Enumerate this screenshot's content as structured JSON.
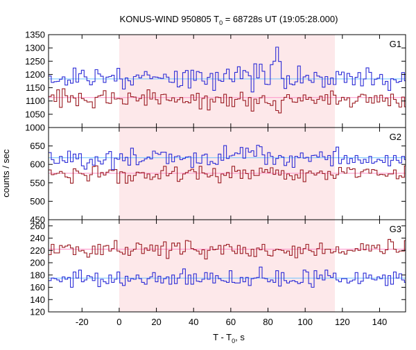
{
  "chart_data": {
    "type": "line",
    "title": "KONUS-WIND 950805 T0 = 68728s UT (19:05:28.000)",
    "title_parts": {
      "prefix": "KONUS-WIND 950805 T",
      "subscript": "0",
      "suffix": " = 68728s UT (19:05:28.000)"
    },
    "xlabel": "T - T0, s",
    "xlabel_parts": {
      "prefix": "T - T",
      "subscript": "0",
      "suffix": ", s"
    },
    "ylabel": "counts / sec",
    "xlim": [
      -38,
      154
    ],
    "xticks": [
      -20,
      0,
      20,
      40,
      60,
      80,
      100,
      120,
      140
    ],
    "highlight_interval": {
      "start": 0,
      "end": 116,
      "color": "#fde8ea"
    },
    "colors": {
      "series_blue": "#2b2bd6",
      "series_red": "#9b1b22",
      "bg_blue": "#6ec3ff",
      "bg_red": "#ff8fc8"
    },
    "step_s": 1.472,
    "panels": [
      {
        "label": "G1",
        "ylim": [
          1000,
          1350
        ],
        "yticks": [
          1000,
          1050,
          1100,
          1150,
          1200,
          1250,
          1300,
          1350
        ],
        "blue_background": 1183,
        "red_background": 1113,
        "blue_values": [
          1194,
          1170,
          1173,
          1174,
          1182,
          1191,
          1160,
          1179,
          1167,
          1224,
          1171,
          1203,
          1216,
          1191,
          1176,
          1161,
          1173,
          1218,
          1202,
          1193,
          1170,
          1190,
          1192,
          1197,
          1175,
          1223,
          1183,
          1145,
          1187,
          1176,
          1160,
          1192,
          1198,
          1187,
          1196,
          1211,
          1198,
          1184,
          1191,
          1190,
          1187,
          1185,
          1201,
          1190,
          1171,
          1170,
          1212,
          1153,
          1158,
          1207,
          1215,
          1149,
          1216,
          1178,
          1211,
          1207,
          1175,
          1163,
          1189,
          1204,
          1140,
          1208,
          1178,
          1174,
          1203,
          1220,
          1183,
          1173,
          1208,
          1229,
          1184,
          1215,
          1209,
          1195,
          1134,
          1240,
          1187,
          1239,
          1212,
          1163,
          1162,
          1237,
          1250,
          1303,
          1249,
          1185,
          1147,
          1195,
          1164,
          1161,
          1172,
          1232,
          1168,
          1191,
          1197,
          1178,
          1170,
          1208,
          1194,
          1190,
          1152,
          1192,
          1163,
          1187,
          1162,
          1211,
          1199,
          1209,
          1170,
          1204,
          1192,
          1161,
          1189,
          1207,
          1157,
          1183,
          1225,
          1208,
          1161,
          1182,
          1186,
          1200,
          1162,
          1174,
          1140,
          1184,
          1180,
          1170,
          1174,
          1207,
          1176,
          1179
        ],
        "red_values": [
          1117,
          1123,
          1098,
          1142,
          1076,
          1146,
          1120,
          1096,
          1120,
          1111,
          1082,
          1129,
          1109,
          1102,
          1096,
          1097,
          1074,
          1114,
          1119,
          1122,
          1139,
          1093,
          1091,
          1131,
          1107,
          1109,
          1108,
          1089,
          1088,
          1130,
          1116,
          1115,
          1100,
          1109,
          1123,
          1084,
          1142,
          1107,
          1131,
          1105,
          1089,
          1124,
          1125,
          1104,
          1101,
          1112,
          1096,
          1105,
          1113,
          1094,
          1098,
          1093,
          1123,
          1103,
          1129,
          1070,
          1110,
          1119,
          1066,
          1107,
          1096,
          1115,
          1113,
          1093,
          1125,
          1081,
          1114,
          1079,
          1106,
          1108,
          1133,
          1102,
          1081,
          1113,
          1062,
          1107,
          1090,
          1112,
          1120,
          1094,
          1090,
          1083,
          1101,
          1064,
          1055,
          1103,
          1114,
          1124,
          1109,
          1096,
          1095,
          1112,
          1100,
          1123,
          1106,
          1114,
          1103,
          1091,
          1106,
          1118,
          1102,
          1124,
          1088,
          1138,
          1122,
          1088,
          1100,
          1114,
          1104,
          1112,
          1077,
          1092,
          1099,
          1117,
          1125,
          1123,
          1095,
          1113,
          1092,
          1120,
          1096,
          1122,
          1099,
          1111,
          1082,
          1126,
          1106,
          1092,
          1077,
          1115,
          1078,
          1123
        ]
      },
      {
        "label": "G2",
        "ylim": [
          450,
          700
        ],
        "yticks": [
          450,
          500,
          550,
          600,
          650
        ],
        "blue_background": 618,
        "red_background": 576,
        "blue_values": [
          632,
          613,
          603,
          603,
          622,
          610,
          605,
          636,
          607,
          628,
          615,
          629,
          596,
          587,
          604,
          614,
          598,
          621,
          609,
          601,
          612,
          629,
          635,
          586,
          617,
          614,
          629,
          610,
          619,
          598,
          644,
          626,
          599,
          607,
          610,
          615,
          620,
          615,
          636,
          630,
          627,
          633,
          633,
          602,
          628,
          607,
          621,
          623,
          613,
          616,
          620,
          621,
          592,
          631,
          604,
          603,
          625,
          628,
          599,
          608,
          603,
          600,
          628,
          611,
          651,
          616,
          623,
          625,
          631,
          629,
          646,
          617,
          644,
          633,
          637,
          622,
          652,
          648,
          626,
          600,
          632,
          622,
          600,
          616,
          624,
          620,
          597,
          606,
          623,
          592,
          622,
          618,
          631,
          617,
          619,
          608,
          624,
          625,
          620,
          634,
          621,
          613,
          624,
          596,
          635,
          647,
          602,
          614,
          624,
          602,
          616,
          605,
          624,
          612,
          603,
          614,
          605,
          622,
          603,
          607,
          614,
          611,
          605,
          624,
          596,
          611,
          624,
          611,
          604,
          622,
          613,
          617
        ],
        "red_values": [
          585,
          572,
          574,
          576,
          581,
          576,
          566,
          564,
          549,
          588,
          582,
          576,
          574,
          570,
          555,
          572,
          594,
          596,
          566,
          578,
          571,
          579,
          585,
          583,
          586,
          549,
          580,
          578,
          549,
          570,
          555,
          570,
          579,
          577,
          578,
          563,
          574,
          559,
          566,
          573,
          561,
          583,
          595,
          569,
          575,
          581,
          593,
          554,
          560,
          574,
          578,
          583,
          587,
          580,
          560,
          595,
          577,
          574,
          566,
          570,
          589,
          567,
          550,
          574,
          570,
          578,
          564,
          595,
          581,
          584,
          562,
          585,
          575,
          561,
          584,
          570,
          570,
          590,
          579,
          586,
          578,
          591,
          573,
          585,
          571,
          583,
          560,
          574,
          569,
          558,
          572,
          563,
          585,
          553,
          577,
          582,
          576,
          571,
          577,
          582,
          575,
          559,
          581,
          571,
          562,
          572,
          592,
          580,
          576,
          591,
          586,
          588,
          565,
          567,
          580,
          585,
          587,
          576,
          586,
          584,
          571,
          573,
          572,
          568,
          574,
          574,
          585,
          561,
          569,
          565,
          596,
          582
        ]
      },
      {
        "label": "G3",
        "ylim": [
          120,
          270
        ],
        "yticks": [
          120,
          140,
          160,
          180,
          200,
          220,
          240,
          260
        ],
        "blue_background": 175,
        "red_background": 222,
        "blue_values": [
          171,
          175,
          174,
          172,
          169,
          177,
          173,
          176,
          160,
          185,
          175,
          188,
          169,
          172,
          179,
          177,
          171,
          183,
          161,
          173,
          169,
          166,
          180,
          168,
          173,
          185,
          167,
          163,
          178,
          170,
          174,
          173,
          180,
          174,
          168,
          165,
          174,
          177,
          184,
          169,
          178,
          167,
          174,
          177,
          165,
          180,
          166,
          175,
          182,
          190,
          165,
          180,
          165,
          182,
          170,
          169,
          173,
          184,
          173,
          183,
          167,
          179,
          174,
          171,
          170,
          168,
          187,
          168,
          167,
          167,
          176,
          169,
          176,
          163,
          174,
          175,
          176,
          193,
          175,
          174,
          169,
          172,
          168,
          187,
          162,
          184,
          171,
          167,
          170,
          171,
          169,
          166,
          168,
          188,
          185,
          166,
          160,
          187,
          174,
          180,
          172,
          188,
          179,
          176,
          183,
          172,
          169,
          174,
          174,
          167,
          170,
          172,
          184,
          166,
          170,
          183,
          175,
          180,
          173,
          172,
          177,
          174,
          180,
          163,
          179,
          165,
          185,
          175,
          182,
          172,
          168,
          171
        ],
        "red_values": [
          213,
          230,
          216,
          216,
          228,
          225,
          227,
          229,
          224,
          213,
          226,
          219,
          220,
          216,
          209,
          215,
          227,
          214,
          230,
          213,
          227,
          228,
          219,
          223,
          236,
          219,
          217,
          214,
          225,
          212,
          219,
          222,
          232,
          230,
          215,
          224,
          220,
          229,
          219,
          228,
          212,
          227,
          234,
          207,
          220,
          232,
          227,
          232,
          214,
          218,
          236,
          235,
          223,
          221,
          219,
          214,
          221,
          206,
          220,
          226,
          221,
          222,
          228,
          214,
          228,
          230,
          226,
          219,
          215,
          228,
          215,
          225,
          215,
          211,
          222,
          210,
          224,
          221,
          230,
          219,
          212,
          211,
          220,
          222,
          221,
          220,
          216,
          219,
          212,
          227,
          208,
          225,
          215,
          223,
          230,
          220,
          218,
          212,
          223,
          232,
          215,
          222,
          222,
          216,
          218,
          226,
          216,
          218,
          214,
          220,
          220,
          219,
          223,
          220,
          231,
          221,
          229,
          219,
          228,
          224,
          229,
          218,
          215,
          221,
          238,
          234,
          222,
          217,
          219,
          219,
          236,
          220
        ]
      }
    ]
  }
}
